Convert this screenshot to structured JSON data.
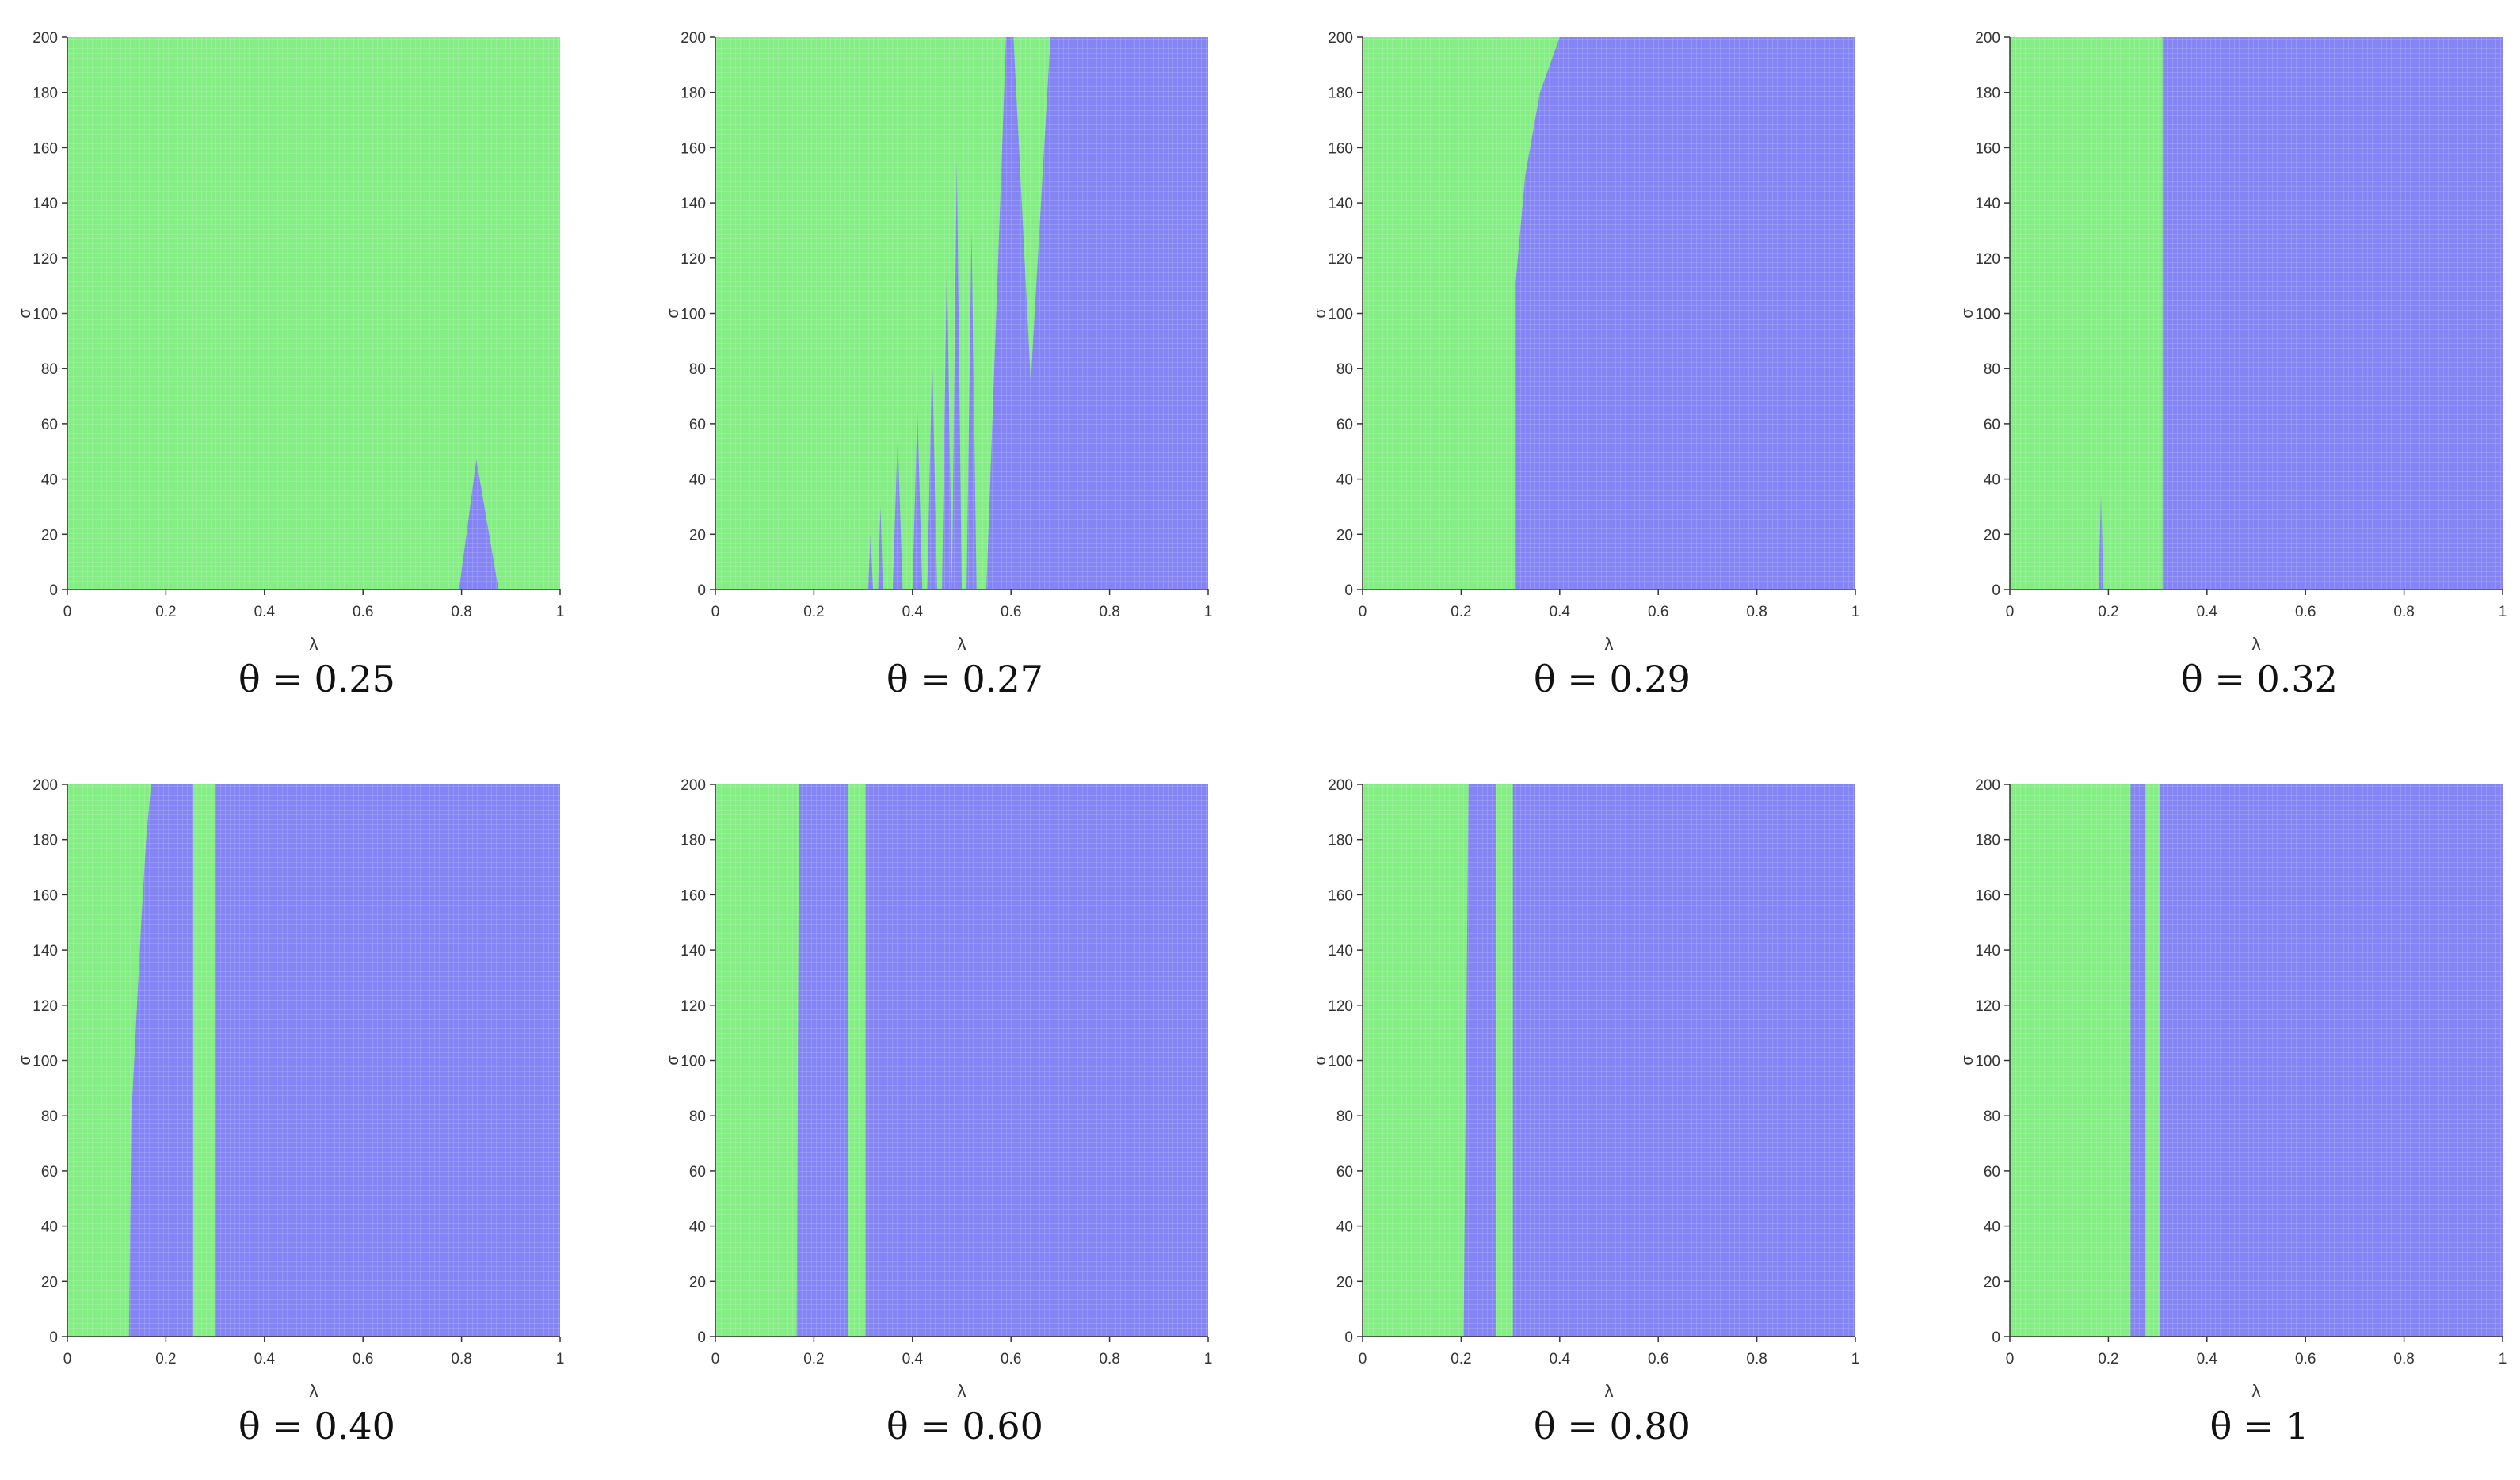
{
  "chart_data": [
    {
      "type": "heatmap",
      "title": "θ = 0.25",
      "xlabel": "λ",
      "ylabel": "σ",
      "xlim": [
        0,
        1
      ],
      "ylim": [
        0,
        200
      ],
      "xticks": [
        "0",
        "0.2",
        "0.4",
        "0.6",
        "0.8",
        "1"
      ],
      "yticks": [
        "0",
        "20",
        "40",
        "60",
        "80",
        "100",
        "120",
        "140",
        "160",
        "180",
        "200"
      ],
      "background": "green",
      "grid": "fine",
      "regions": [
        {
          "color": "blue",
          "polygon": [
            [
              0.795,
              0
            ],
            [
              0.83,
              47
            ],
            [
              0.875,
              0
            ]
          ]
        }
      ]
    },
    {
      "type": "heatmap",
      "title": "θ = 0.27",
      "xlabel": "λ",
      "ylabel": "σ",
      "xlim": [
        0,
        1
      ],
      "ylim": [
        0,
        200
      ],
      "xticks": [
        "0",
        "0.2",
        "0.4",
        "0.6",
        "0.8",
        "1"
      ],
      "yticks": [
        "0",
        "20",
        "40",
        "60",
        "80",
        "100",
        "120",
        "140",
        "160",
        "180",
        "200"
      ],
      "background": "green",
      "grid": "fine",
      "regions": [
        {
          "color": "blue",
          "polygon": [
            [
              0.55,
              0
            ],
            [
              0.59,
              200
            ],
            [
              0.605,
              200
            ],
            [
              0.64,
              75
            ],
            [
              0.68,
              200
            ],
            [
              1,
              200
            ],
            [
              1,
              0
            ]
          ]
        },
        {
          "color": "blue",
          "polygon": [
            [
              0.31,
              0
            ],
            [
              0.315,
              20
            ],
            [
              0.32,
              0
            ]
          ]
        },
        {
          "color": "blue",
          "polygon": [
            [
              0.33,
              0
            ],
            [
              0.335,
              30
            ],
            [
              0.34,
              0
            ]
          ]
        },
        {
          "color": "blue",
          "polygon": [
            [
              0.36,
              0
            ],
            [
              0.37,
              55
            ],
            [
              0.38,
              0
            ]
          ]
        },
        {
          "color": "blue",
          "polygon": [
            [
              0.4,
              0
            ],
            [
              0.41,
              65
            ],
            [
              0.42,
              0
            ]
          ]
        },
        {
          "color": "blue",
          "polygon": [
            [
              0.43,
              0
            ],
            [
              0.44,
              85
            ],
            [
              0.45,
              0
            ]
          ]
        },
        {
          "color": "blue",
          "polygon": [
            [
              0.46,
              0
            ],
            [
              0.47,
              120
            ],
            [
              0.48,
              0
            ]
          ]
        },
        {
          "color": "blue",
          "polygon": [
            [
              0.48,
              0
            ],
            [
              0.49,
              155
            ],
            [
              0.5,
              0
            ]
          ]
        },
        {
          "color": "blue",
          "polygon": [
            [
              0.51,
              0
            ],
            [
              0.52,
              130
            ],
            [
              0.53,
              0
            ]
          ]
        }
      ]
    },
    {
      "type": "heatmap",
      "title": "θ = 0.29",
      "xlabel": "λ",
      "ylabel": "σ",
      "xlim": [
        0,
        1
      ],
      "ylim": [
        0,
        200
      ],
      "xticks": [
        "0",
        "0.2",
        "0.4",
        "0.6",
        "0.8",
        "1"
      ],
      "yticks": [
        "0",
        "20",
        "40",
        "60",
        "80",
        "100",
        "120",
        "140",
        "160",
        "180",
        "200"
      ],
      "background": "green",
      "grid": "fine",
      "regions": [
        {
          "color": "blue",
          "polygon": [
            [
              0.31,
              0
            ],
            [
              0.31,
              110
            ],
            [
              0.33,
              150
            ],
            [
              0.36,
              180
            ],
            [
              0.4,
              200
            ],
            [
              1,
              200
            ],
            [
              1,
              0
            ]
          ]
        },
        {
          "color": "blue",
          "polygon": [
            [
              0.41,
              200
            ],
            [
              0.45,
              200
            ],
            [
              0.43,
              150
            ]
          ]
        }
      ]
    },
    {
      "type": "heatmap",
      "title": "θ = 0.32",
      "xlabel": "λ",
      "ylabel": "σ",
      "xlim": [
        0,
        1
      ],
      "ylim": [
        0,
        200
      ],
      "xticks": [
        "0",
        "0.2",
        "0.4",
        "0.6",
        "0.8",
        "1"
      ],
      "yticks": [
        "0",
        "20",
        "40",
        "60",
        "80",
        "100",
        "120",
        "140",
        "160",
        "180",
        "200"
      ],
      "background": "green",
      "grid": "fine",
      "regions": [
        {
          "color": "blue",
          "polygon": [
            [
              0.31,
              0
            ],
            [
              0.31,
              200
            ],
            [
              1,
              200
            ],
            [
              1,
              0
            ]
          ]
        },
        {
          "color": "blue",
          "polygon": [
            [
              0.18,
              0
            ],
            [
              0.185,
              35
            ],
            [
              0.19,
              0
            ]
          ]
        }
      ]
    },
    {
      "type": "heatmap",
      "title": "θ = 0.40",
      "xlabel": "λ",
      "ylabel": "σ",
      "xlim": [
        0,
        1
      ],
      "ylim": [
        0,
        200
      ],
      "xticks": [
        "0",
        "0.2",
        "0.4",
        "0.6",
        "0.8",
        "1"
      ],
      "yticks": [
        "0",
        "20",
        "40",
        "60",
        "80",
        "100",
        "120",
        "140",
        "160",
        "180",
        "200"
      ],
      "background": "green",
      "grid": "fine",
      "regions": [
        {
          "color": "blue",
          "polygon": [
            [
              0.125,
              0
            ],
            [
              0.13,
              80
            ],
            [
              0.15,
              150
            ],
            [
              0.16,
              180
            ],
            [
              0.17,
              200
            ],
            [
              0.255,
              200
            ],
            [
              0.255,
              0
            ]
          ]
        },
        {
          "color": "blue",
          "polygon": [
            [
              0.3,
              0
            ],
            [
              0.3,
              200
            ],
            [
              1,
              200
            ],
            [
              1,
              0
            ]
          ]
        }
      ]
    },
    {
      "type": "heatmap",
      "title": "θ = 0.60",
      "xlabel": "λ",
      "ylabel": "σ",
      "xlim": [
        0,
        1
      ],
      "ylim": [
        0,
        200
      ],
      "xticks": [
        "0",
        "0.2",
        "0.4",
        "0.6",
        "0.8",
        "1"
      ],
      "yticks": [
        "0",
        "20",
        "40",
        "60",
        "80",
        "100",
        "120",
        "140",
        "160",
        "180",
        "200"
      ],
      "background": "green",
      "grid": "fine",
      "regions": [
        {
          "color": "blue",
          "polygon": [
            [
              0.165,
              0
            ],
            [
              0.17,
              200
            ],
            [
              0.27,
              200
            ],
            [
              0.27,
              0
            ]
          ]
        },
        {
          "color": "blue",
          "polygon": [
            [
              0.305,
              0
            ],
            [
              0.305,
              200
            ],
            [
              1,
              200
            ],
            [
              1,
              0
            ]
          ]
        }
      ]
    },
    {
      "type": "heatmap",
      "title": "θ = 0.80",
      "xlabel": "λ",
      "ylabel": "σ",
      "xlim": [
        0,
        1
      ],
      "ylim": [
        0,
        200
      ],
      "xticks": [
        "0",
        "0.2",
        "0.4",
        "0.6",
        "0.8",
        "1"
      ],
      "yticks": [
        "0",
        "20",
        "40",
        "60",
        "80",
        "100",
        "120",
        "140",
        "160",
        "180",
        "200"
      ],
      "background": "green",
      "grid": "fine",
      "regions": [
        {
          "color": "blue",
          "polygon": [
            [
              0.205,
              0
            ],
            [
              0.215,
              200
            ],
            [
              0.27,
              200
            ],
            [
              0.27,
              0
            ]
          ]
        },
        {
          "color": "blue",
          "polygon": [
            [
              0.305,
              0
            ],
            [
              0.305,
              200
            ],
            [
              1,
              200
            ],
            [
              1,
              0
            ]
          ]
        }
      ]
    },
    {
      "type": "heatmap",
      "title": "θ = 1",
      "xlabel": "λ",
      "ylabel": "σ",
      "xlim": [
        0,
        1
      ],
      "ylim": [
        0,
        200
      ],
      "xticks": [
        "0",
        "0.2",
        "0.4",
        "0.6",
        "0.8",
        "1"
      ],
      "yticks": [
        "0",
        "20",
        "40",
        "60",
        "80",
        "100",
        "120",
        "140",
        "160",
        "180",
        "200"
      ],
      "background": "green",
      "grid": "fine",
      "regions": [
        {
          "color": "blue",
          "polygon": [
            [
              0.245,
              0
            ],
            [
              0.245,
              200
            ],
            [
              0.275,
              200
            ],
            [
              0.275,
              0
            ]
          ]
        },
        {
          "color": "blue",
          "polygon": [
            [
              0.305,
              0
            ],
            [
              0.305,
              200
            ],
            [
              1,
              200
            ],
            [
              1,
              0
            ]
          ]
        }
      ]
    }
  ],
  "colors": {
    "green": "#84ee84",
    "blue": "#8484f4",
    "axis": "#333333"
  }
}
